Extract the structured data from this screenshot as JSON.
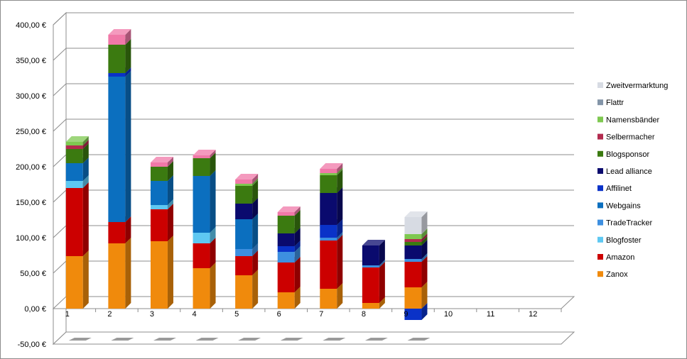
{
  "chart_data": {
    "type": "bar",
    "stacked": true,
    "three_d": true,
    "categories": [
      "1",
      "2",
      "3",
      "4",
      "5",
      "6",
      "7",
      "8",
      "9",
      "10",
      "11",
      "12"
    ],
    "y_tick_labels": [
      "-50,00 €",
      "0,00 €",
      "50,00 €",
      "100,00 €",
      "150,00 €",
      "200,00 €",
      "250,00 €",
      "300,00 €",
      "350,00 €",
      "400,00 €"
    ],
    "ylim": [
      -50,
      400
    ],
    "grid": true,
    "legend_position": "right",
    "series": [
      {
        "name": "Zanox",
        "color": "#f08a0c",
        "values": [
          74,
          92,
          95,
          57,
          47,
          23,
          28,
          8,
          30,
          0,
          0,
          0
        ]
      },
      {
        "name": "Amazon",
        "color": "#cc0000",
        "values": [
          96,
          30,
          45,
          35,
          27,
          42,
          68,
          50,
          36,
          0,
          0,
          0
        ]
      },
      {
        "name": "Blogfoster",
        "color": "#5ec8f2",
        "values": [
          10,
          0,
          6,
          15,
          0,
          0,
          0,
          0,
          0,
          0,
          0,
          0
        ]
      },
      {
        "name": "TradeTracker",
        "color": "#3d8fe0",
        "values": [
          0,
          0,
          0,
          0,
          10,
          15,
          4,
          3,
          4,
          0,
          0,
          0
        ]
      },
      {
        "name": "Webgains",
        "color": "#0b6fbf",
        "values": [
          25,
          205,
          34,
          80,
          42,
          0,
          0,
          0,
          0,
          0,
          0,
          0
        ]
      },
      {
        "name": "Affilinet",
        "color": "#0a32c8",
        "values": [
          0,
          5,
          0,
          0,
          0,
          8,
          18,
          0,
          -16,
          0,
          0,
          0
        ]
      },
      {
        "name": "Lead alliance",
        "color": "#0a0a6e",
        "values": [
          0,
          0,
          0,
          0,
          22,
          18,
          45,
          28,
          19,
          0,
          0,
          0
        ]
      },
      {
        "name": "Blogsponsor",
        "color": "#3b7a10",
        "values": [
          20,
          40,
          20,
          25,
          25,
          25,
          25,
          0,
          5,
          0,
          0,
          0
        ]
      },
      {
        "name": "Selbermacher",
        "color": "#b22b4e",
        "values": [
          5,
          0,
          0,
          0,
          0,
          0,
          0,
          0,
          4,
          0,
          0,
          0
        ]
      },
      {
        "name": "Namensbänder",
        "color": "#7ec850",
        "values": [
          5,
          0,
          0,
          0,
          3,
          0,
          3,
          0,
          7,
          0,
          0,
          0
        ]
      },
      {
        "name": "Flattr",
        "color": "#8395a8",
        "values": [
          0,
          0,
          0,
          0,
          0,
          0,
          0,
          0,
          0,
          0,
          0,
          0
        ]
      },
      {
        "name": "Zweitvermarktung",
        "color": "#d7dbe3",
        "values": [
          0,
          0,
          0,
          0,
          0,
          0,
          0,
          0,
          24,
          0,
          0,
          0
        ]
      },
      {
        "name": "",
        "color": "#f078a8",
        "values": [
          0,
          14,
          6,
          4,
          6,
          5,
          6,
          0,
          0,
          0,
          0,
          0
        ]
      }
    ],
    "legend": [
      "Zweitvermarktung",
      "Flattr",
      "Namensbänder",
      "Selbermacher",
      "Blogsponsor",
      "Lead alliance",
      "Affilinet",
      "Webgains",
      "TradeTracker",
      "Blogfoster",
      "Amazon",
      "Zanox"
    ]
  }
}
